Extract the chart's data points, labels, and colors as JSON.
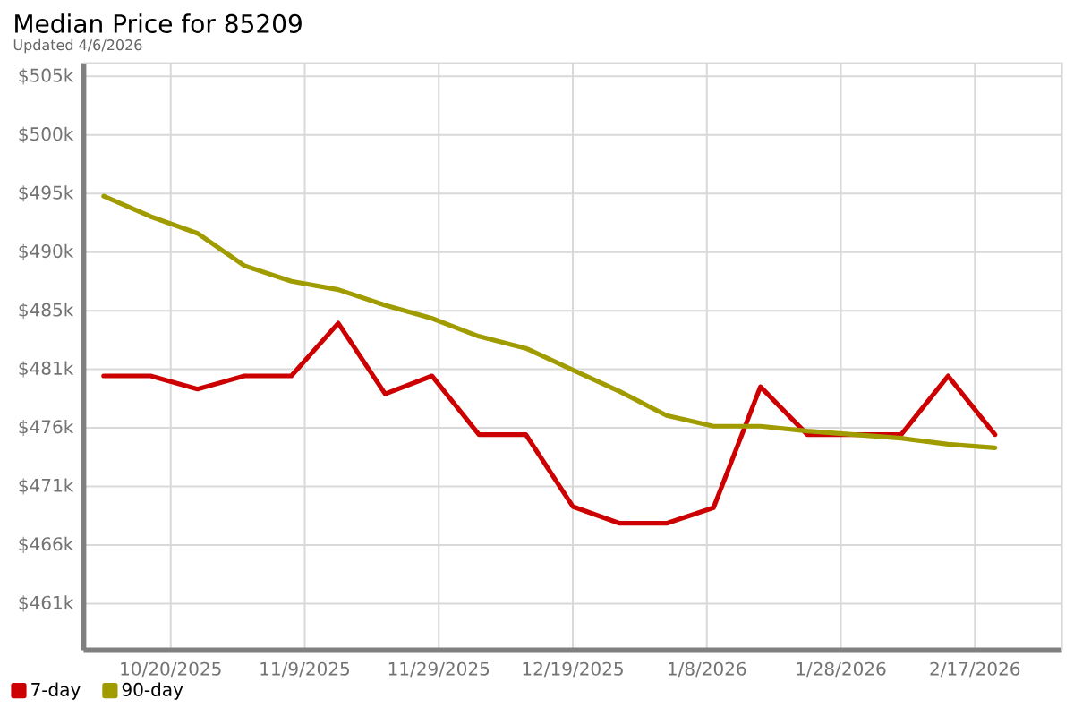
{
  "chart_data": {
    "type": "line",
    "title": "Median Price for 85209",
    "subtitle": "Updated 4/6/2026",
    "x": [
      "2025-10-10",
      "2025-10-17",
      "2025-10-24",
      "2025-10-31",
      "2025-11-07",
      "2025-11-14",
      "2025-11-21",
      "2025-11-28",
      "2025-12-05",
      "2025-12-12",
      "2025-12-19",
      "2025-12-26",
      "2026-01-02",
      "2026-01-09",
      "2026-01-16",
      "2026-01-23",
      "2026-01-30",
      "2026-02-06",
      "2026-02-13",
      "2026-02-20"
    ],
    "series": [
      {
        "name": "7-day",
        "color": "#cc0000",
        "values": [
          480.0,
          480.0,
          478.9,
          480.0,
          480.0,
          484.4,
          478.5,
          480.0,
          475.1,
          475.1,
          469.1,
          467.7,
          467.7,
          469.0,
          479.1,
          475.1,
          475.1,
          475.1,
          480.0,
          475.1
        ]
      },
      {
        "name": "90-day",
        "color": "#a09c00",
        "values": [
          495.0,
          493.3,
          491.9,
          489.2,
          487.9,
          487.2,
          485.9,
          484.8,
          483.3,
          482.3,
          480.5,
          478.7,
          476.7,
          475.8,
          475.8,
          475.4,
          475.1,
          474.8,
          474.3,
          474.0
        ]
      }
    ],
    "xlim": [
      "2025-10-07",
      "2026-03-02"
    ],
    "xticks": [
      {
        "value": "2025-10-20",
        "label": "10/20/2025"
      },
      {
        "value": "2025-11-09",
        "label": "11/9/2025"
      },
      {
        "value": "2025-11-29",
        "label": "11/29/2025"
      },
      {
        "value": "2025-12-19",
        "label": "12/19/2025"
      },
      {
        "value": "2026-01-08",
        "label": "1/8/2026"
      },
      {
        "value": "2026-01-28",
        "label": "1/28/2026"
      },
      {
        "value": "2026-02-17",
        "label": "2/17/2026"
      }
    ],
    "ylim": [
      457.1,
      506.1
    ],
    "yticks": [
      {
        "value": 461.0,
        "label": "$461k"
      },
      {
        "value": 465.89,
        "label": "$466k"
      },
      {
        "value": 470.78,
        "label": "$471k"
      },
      {
        "value": 475.67,
        "label": "$476k"
      },
      {
        "value": 480.56,
        "label": "$481k"
      },
      {
        "value": 485.44,
        "label": "$485k"
      },
      {
        "value": 490.33,
        "label": "$490k"
      },
      {
        "value": 495.22,
        "label": "$495k"
      },
      {
        "value": 500.11,
        "label": "$500k"
      },
      {
        "value": 505.0,
        "label": "$505k"
      }
    ],
    "grid": true,
    "legend": "bottom left"
  }
}
